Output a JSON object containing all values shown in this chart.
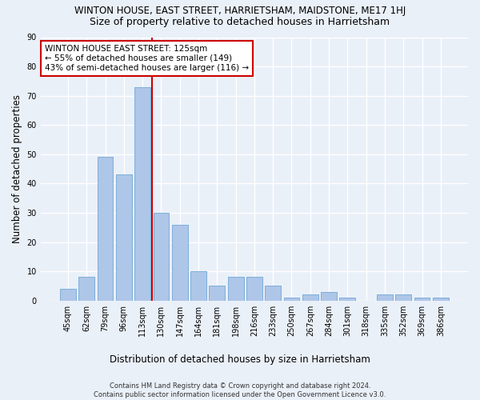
{
  "title": "WINTON HOUSE, EAST STREET, HARRIETSHAM, MAIDSTONE, ME17 1HJ",
  "subtitle": "Size of property relative to detached houses in Harrietsham",
  "xlabel": "Distribution of detached houses by size in Harrietsham",
  "ylabel": "Number of detached properties",
  "categories": [
    "45sqm",
    "62sqm",
    "79sqm",
    "96sqm",
    "113sqm",
    "130sqm",
    "147sqm",
    "164sqm",
    "181sqm",
    "198sqm",
    "216sqm",
    "233sqm",
    "250sqm",
    "267sqm",
    "284sqm",
    "301sqm",
    "318sqm",
    "335sqm",
    "352sqm",
    "369sqm",
    "386sqm"
  ],
  "values": [
    4,
    8,
    49,
    43,
    73,
    30,
    26,
    10,
    5,
    8,
    8,
    5,
    1,
    2,
    3,
    1,
    0,
    2,
    2,
    1,
    1
  ],
  "bar_color": "#aec6e8",
  "bar_edge_color": "#6fa8d6",
  "vline_x_index": 4,
  "vline_color": "#cc0000",
  "ylim": [
    0,
    90
  ],
  "yticks": [
    0,
    10,
    20,
    30,
    40,
    50,
    60,
    70,
    80,
    90
  ],
  "annotation_text": "WINTON HOUSE EAST STREET: 125sqm\n← 55% of detached houses are smaller (149)\n43% of semi-detached houses are larger (116) →",
  "annotation_box_color": "#ffffff",
  "annotation_box_edge": "#cc0000",
  "footer1": "Contains HM Land Registry data © Crown copyright and database right 2024.",
  "footer2": "Contains public sector information licensed under the Open Government Licence v3.0.",
  "bg_color": "#eaf0f8",
  "grid_color": "#ffffff",
  "title_fontsize": 8.5,
  "subtitle_fontsize": 9,
  "tick_fontsize": 7,
  "label_fontsize": 8.5,
  "annotation_fontsize": 7.5,
  "footer_fontsize": 6
}
